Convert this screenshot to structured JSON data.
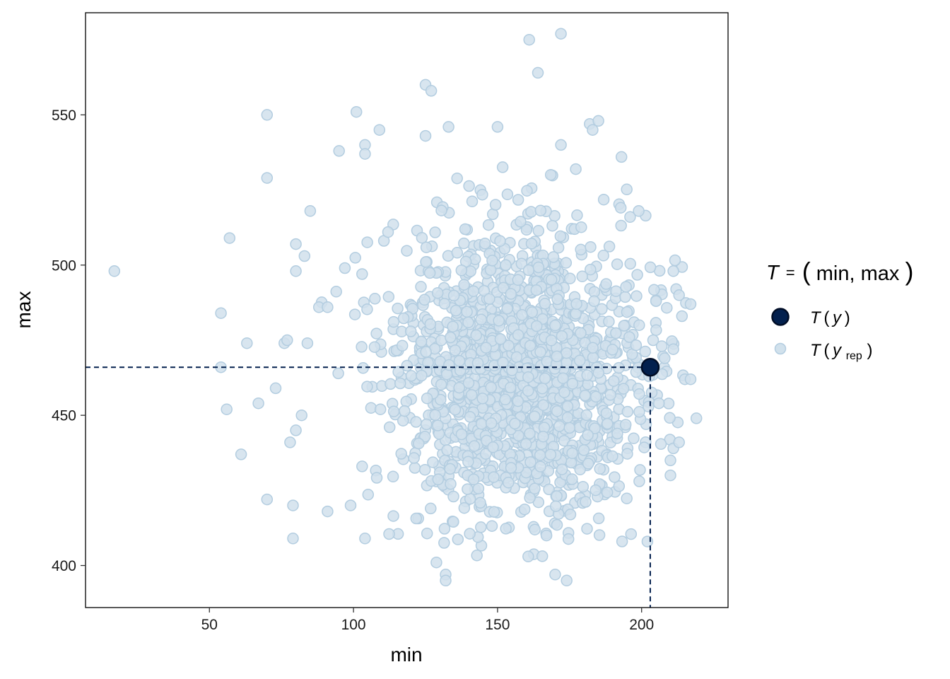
{
  "chart_data": {
    "type": "scatter",
    "xlabel": "min",
    "ylabel": "max",
    "xlim": [
      7,
      230
    ],
    "ylim": [
      386,
      584
    ],
    "x_ticks": [
      50,
      100,
      150,
      200
    ],
    "y_ticks": [
      400,
      450,
      500,
      550
    ],
    "grid": false,
    "legend": {
      "placement": "right",
      "title": {
        "lhs": "T",
        "eq": "=",
        "lparen": "(",
        "body": "min, max",
        "rparen": ")"
      },
      "observed": {
        "func": "T",
        "lparen": "(",
        "var": "y",
        "rparen": ")"
      },
      "replicated": {
        "func": "T",
        "lparen": "(",
        "var": "y",
        "sub": "rep",
        "rparen": ")"
      }
    },
    "observed": {
      "x": 203,
      "y": 466
    },
    "colors": {
      "observed_fill": "#03204e",
      "observed_stroke": "#000d26",
      "rep_fill": "#d1e1ec",
      "rep_stroke": "#b3cde0",
      "ref_line": "#03204e"
    },
    "replicated_extreme_points": [
      [
        17,
        498
      ],
      [
        54,
        484
      ],
      [
        54,
        466
      ],
      [
        56,
        452
      ],
      [
        57,
        509
      ],
      [
        61,
        437
      ],
      [
        63,
        474
      ],
      [
        67,
        454
      ],
      [
        70,
        550
      ],
      [
        70,
        529
      ],
      [
        70,
        422
      ],
      [
        73,
        459
      ],
      [
        76,
        474
      ],
      [
        77,
        475
      ],
      [
        78,
        441
      ],
      [
        79,
        420
      ],
      [
        79,
        409
      ],
      [
        80,
        498
      ],
      [
        80,
        507
      ],
      [
        80,
        445
      ],
      [
        82,
        450
      ],
      [
        83,
        503
      ],
      [
        84,
        474
      ],
      [
        85,
        518
      ],
      [
        88,
        486
      ],
      [
        91,
        486
      ],
      [
        91,
        418
      ],
      [
        95,
        538
      ],
      [
        97,
        499
      ],
      [
        99,
        420
      ],
      [
        101,
        551
      ],
      [
        103,
        497
      ],
      [
        103,
        433
      ],
      [
        104,
        540
      ],
      [
        104,
        537
      ],
      [
        104,
        409
      ],
      [
        109,
        545
      ],
      [
        112,
        511
      ],
      [
        125,
        543
      ],
      [
        125,
        560
      ],
      [
        127,
        558
      ],
      [
        132,
        397
      ],
      [
        132,
        395
      ],
      [
        133,
        546
      ],
      [
        150,
        546
      ],
      [
        161,
        575
      ],
      [
        164,
        564
      ],
      [
        170,
        397
      ],
      [
        172,
        577
      ],
      [
        172,
        540
      ],
      [
        174,
        395
      ],
      [
        182,
        547
      ],
      [
        183,
        545
      ],
      [
        185,
        548
      ],
      [
        193,
        536
      ],
      [
        196,
        516
      ],
      [
        199,
        518
      ],
      [
        202,
        408
      ],
      [
        204,
        475
      ],
      [
        205,
        488
      ],
      [
        206,
        454
      ],
      [
        207,
        473
      ],
      [
        208,
        469
      ],
      [
        210,
        435
      ],
      [
        210,
        430
      ],
      [
        211,
        498
      ],
      [
        211,
        472
      ],
      [
        211,
        439
      ],
      [
        212,
        492
      ],
      [
        213,
        490
      ],
      [
        213,
        441
      ],
      [
        214,
        483
      ],
      [
        215,
        462
      ],
      [
        217,
        462
      ],
      [
        217,
        487
      ],
      [
        219,
        449
      ]
    ],
    "replicated_bulk": {
      "n": 1650,
      "x_mean": 158,
      "x_sd": 22,
      "x_range": [
        88,
        216
      ],
      "y_mean": 462,
      "y_sd": 24,
      "y_range": [
        400,
        537
      ]
    }
  }
}
